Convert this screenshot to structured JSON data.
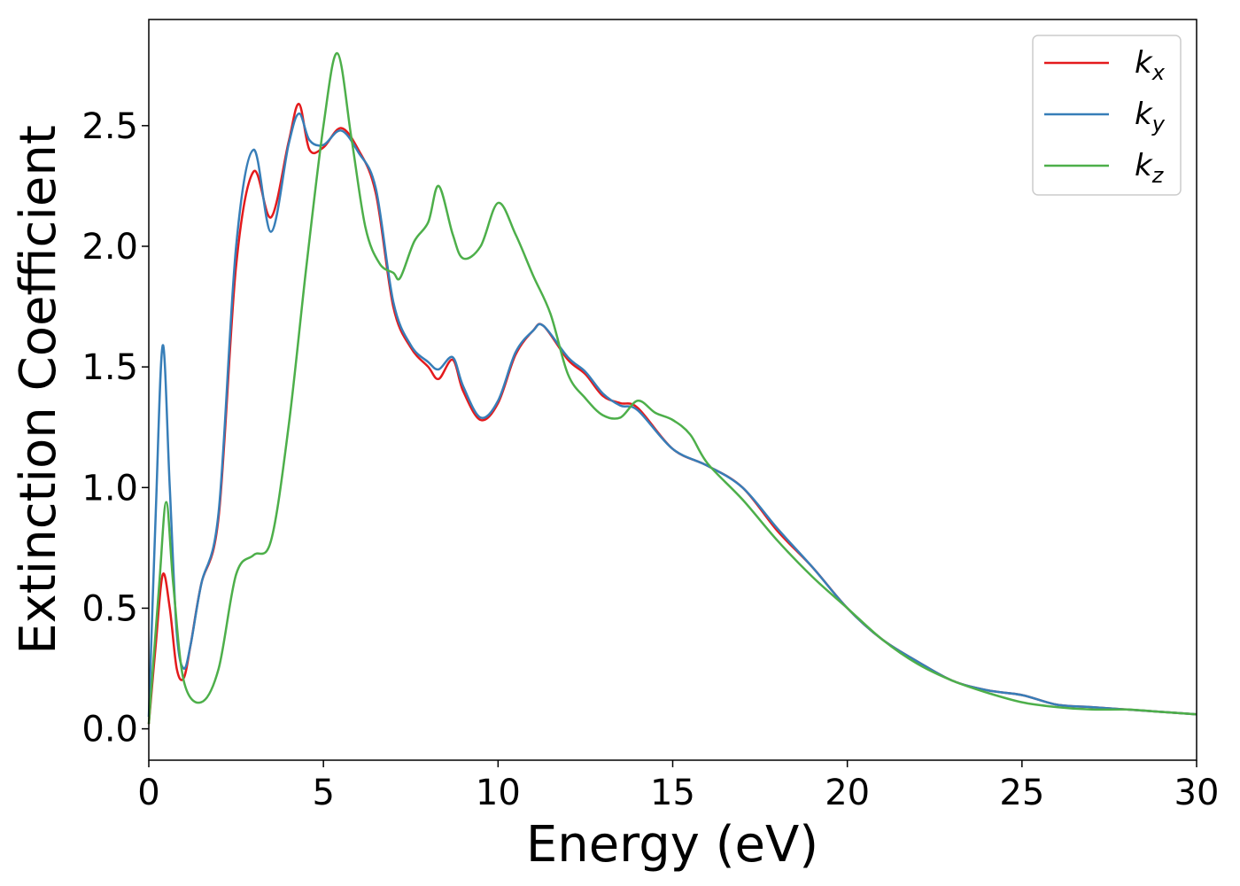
{
  "chart_data": {
    "type": "line",
    "xlabel": "Energy (eV)",
    "ylabel": "Extinction Coefficient",
    "xlim": [
      0,
      30
    ],
    "ylim": [
      -0.13,
      2.94
    ],
    "xticks": [
      "0",
      "5",
      "10",
      "15",
      "20",
      "25",
      "30"
    ],
    "yticks": [
      "0.0",
      "0.5",
      "1.0",
      "1.5",
      "2.0",
      "2.5"
    ],
    "grid": false,
    "legend_position": "top-right",
    "series": [
      {
        "name": "k",
        "sub": "x",
        "color": "#e41a1c",
        "x": [
          0,
          0.2,
          0.4,
          0.6,
          0.8,
          1.0,
          1.2,
          1.5,
          2.0,
          2.5,
          3.0,
          3.5,
          4.0,
          4.3,
          4.6,
          5.0,
          5.5,
          6.0,
          6.5,
          7.0,
          7.5,
          8.0,
          8.3,
          8.7,
          9.0,
          9.5,
          10.0,
          10.5,
          11.0,
          11.3,
          12.0,
          12.5,
          13.0,
          13.5,
          14.0,
          15.0,
          16.0,
          17.0,
          18.0,
          19.0,
          20.0,
          21.0,
          22.0,
          23.0,
          24.0,
          25.0,
          26.0,
          27.0,
          28.0,
          29.0,
          30.0
        ],
        "y": [
          0.02,
          0.35,
          0.64,
          0.5,
          0.25,
          0.21,
          0.35,
          0.6,
          0.88,
          1.92,
          2.31,
          2.12,
          2.43,
          2.59,
          2.4,
          2.41,
          2.49,
          2.4,
          2.22,
          1.75,
          1.58,
          1.5,
          1.45,
          1.53,
          1.4,
          1.28,
          1.35,
          1.55,
          1.65,
          1.67,
          1.53,
          1.47,
          1.38,
          1.35,
          1.33,
          1.16,
          1.09,
          1.0,
          0.82,
          0.67,
          0.5,
          0.37,
          0.28,
          0.2,
          0.16,
          0.14,
          0.1,
          0.09,
          0.08,
          0.07,
          0.06
        ]
      },
      {
        "name": "k",
        "sub": "y",
        "color": "#377eb8",
        "x": [
          0,
          0.2,
          0.4,
          0.6,
          0.8,
          1.0,
          1.2,
          1.5,
          2.0,
          2.5,
          3.0,
          3.5,
          4.0,
          4.3,
          4.6,
          5.0,
          5.5,
          6.0,
          6.5,
          7.0,
          7.5,
          8.0,
          8.3,
          8.7,
          9.0,
          9.5,
          10.0,
          10.5,
          11.0,
          11.3,
          12.0,
          12.5,
          13.0,
          13.5,
          14.0,
          15.0,
          16.0,
          17.0,
          18.0,
          19.0,
          20.0,
          21.0,
          22.0,
          23.0,
          24.0,
          25.0,
          26.0,
          27.0,
          28.0,
          29.0,
          30.0
        ],
        "y": [
          0.05,
          0.9,
          1.59,
          1.0,
          0.4,
          0.25,
          0.35,
          0.6,
          0.9,
          2.0,
          2.4,
          2.06,
          2.42,
          2.55,
          2.44,
          2.42,
          2.48,
          2.39,
          2.24,
          1.77,
          1.59,
          1.52,
          1.49,
          1.54,
          1.42,
          1.29,
          1.36,
          1.56,
          1.65,
          1.67,
          1.54,
          1.48,
          1.39,
          1.34,
          1.32,
          1.16,
          1.09,
          1.0,
          0.83,
          0.67,
          0.5,
          0.37,
          0.28,
          0.2,
          0.16,
          0.14,
          0.1,
          0.09,
          0.08,
          0.07,
          0.06
        ]
      },
      {
        "name": "k",
        "sub": "z",
        "color": "#4daf4a",
        "x": [
          0,
          0.3,
          0.5,
          0.7,
          1.0,
          1.5,
          2.0,
          2.5,
          3.0,
          3.5,
          4.0,
          4.5,
          5.0,
          5.4,
          5.8,
          6.2,
          6.6,
          7.0,
          7.2,
          7.6,
          8.0,
          8.3,
          8.7,
          9.0,
          9.5,
          10.0,
          10.5,
          11.0,
          11.5,
          12.0,
          12.5,
          13.0,
          13.5,
          14.0,
          14.5,
          15.0,
          15.5,
          16.0,
          17.0,
          18.0,
          19.0,
          20.0,
          21.0,
          22.0,
          23.0,
          24.0,
          25.0,
          26.0,
          27.0,
          28.0,
          29.0,
          30.0
        ],
        "y": [
          0.02,
          0.6,
          0.94,
          0.6,
          0.2,
          0.11,
          0.25,
          0.64,
          0.72,
          0.78,
          1.25,
          1.9,
          2.5,
          2.8,
          2.45,
          2.08,
          1.93,
          1.89,
          1.87,
          2.02,
          2.1,
          2.25,
          2.05,
          1.95,
          2.0,
          2.18,
          2.05,
          1.88,
          1.72,
          1.47,
          1.37,
          1.3,
          1.29,
          1.36,
          1.31,
          1.28,
          1.22,
          1.1,
          0.95,
          0.78,
          0.63,
          0.5,
          0.37,
          0.27,
          0.2,
          0.15,
          0.11,
          0.09,
          0.08,
          0.08,
          0.07,
          0.06
        ]
      }
    ]
  }
}
